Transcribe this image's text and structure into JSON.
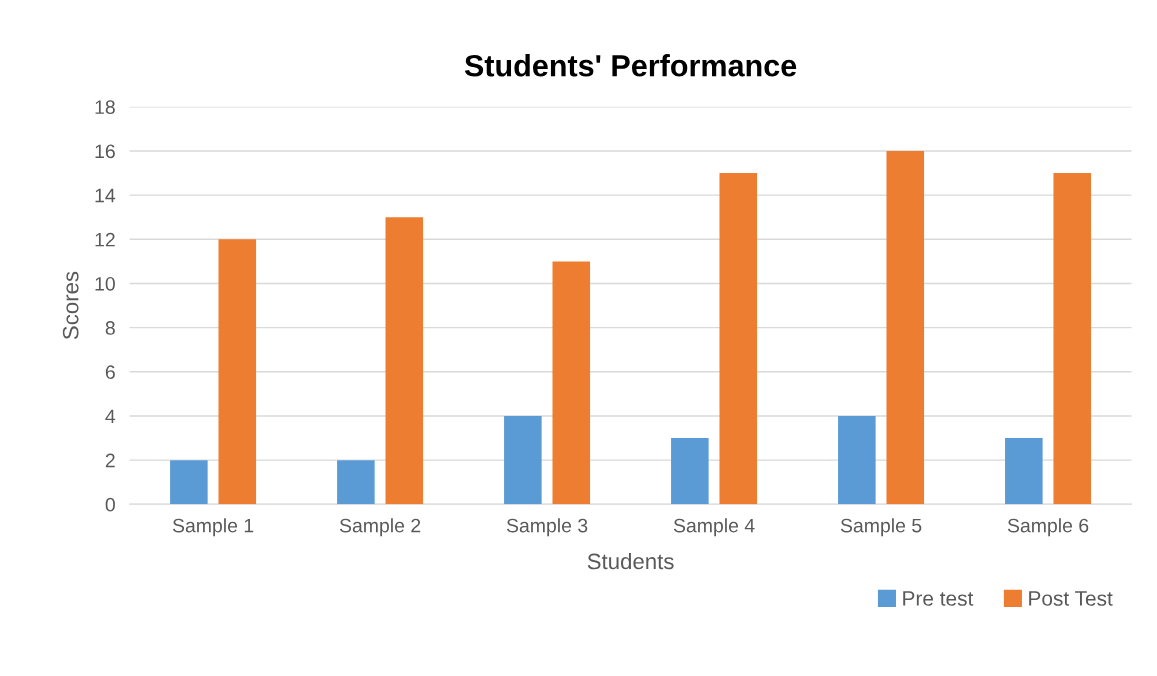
{
  "chart_data": {
    "type": "bar",
    "title": "Students' Performance",
    "xlabel": "Students",
    "ylabel": "Scores",
    "categories": [
      "Sample 1",
      "Sample 2",
      "Sample 3",
      "Sample 4",
      "Sample 5",
      "Sample 6"
    ],
    "series": [
      {
        "name": "Pre test",
        "color": "#5b9bd5",
        "values": [
          2,
          2,
          4,
          3,
          4,
          3
        ]
      },
      {
        "name": "Post Test",
        "color": "#ed7d31",
        "values": [
          12,
          13,
          11,
          15,
          16,
          15
        ]
      }
    ],
    "ylim": [
      0,
      18
    ],
    "yticks": [
      0,
      2,
      4,
      6,
      8,
      10,
      12,
      14,
      16,
      18
    ],
    "grid": "y",
    "legend": "bottom right"
  }
}
